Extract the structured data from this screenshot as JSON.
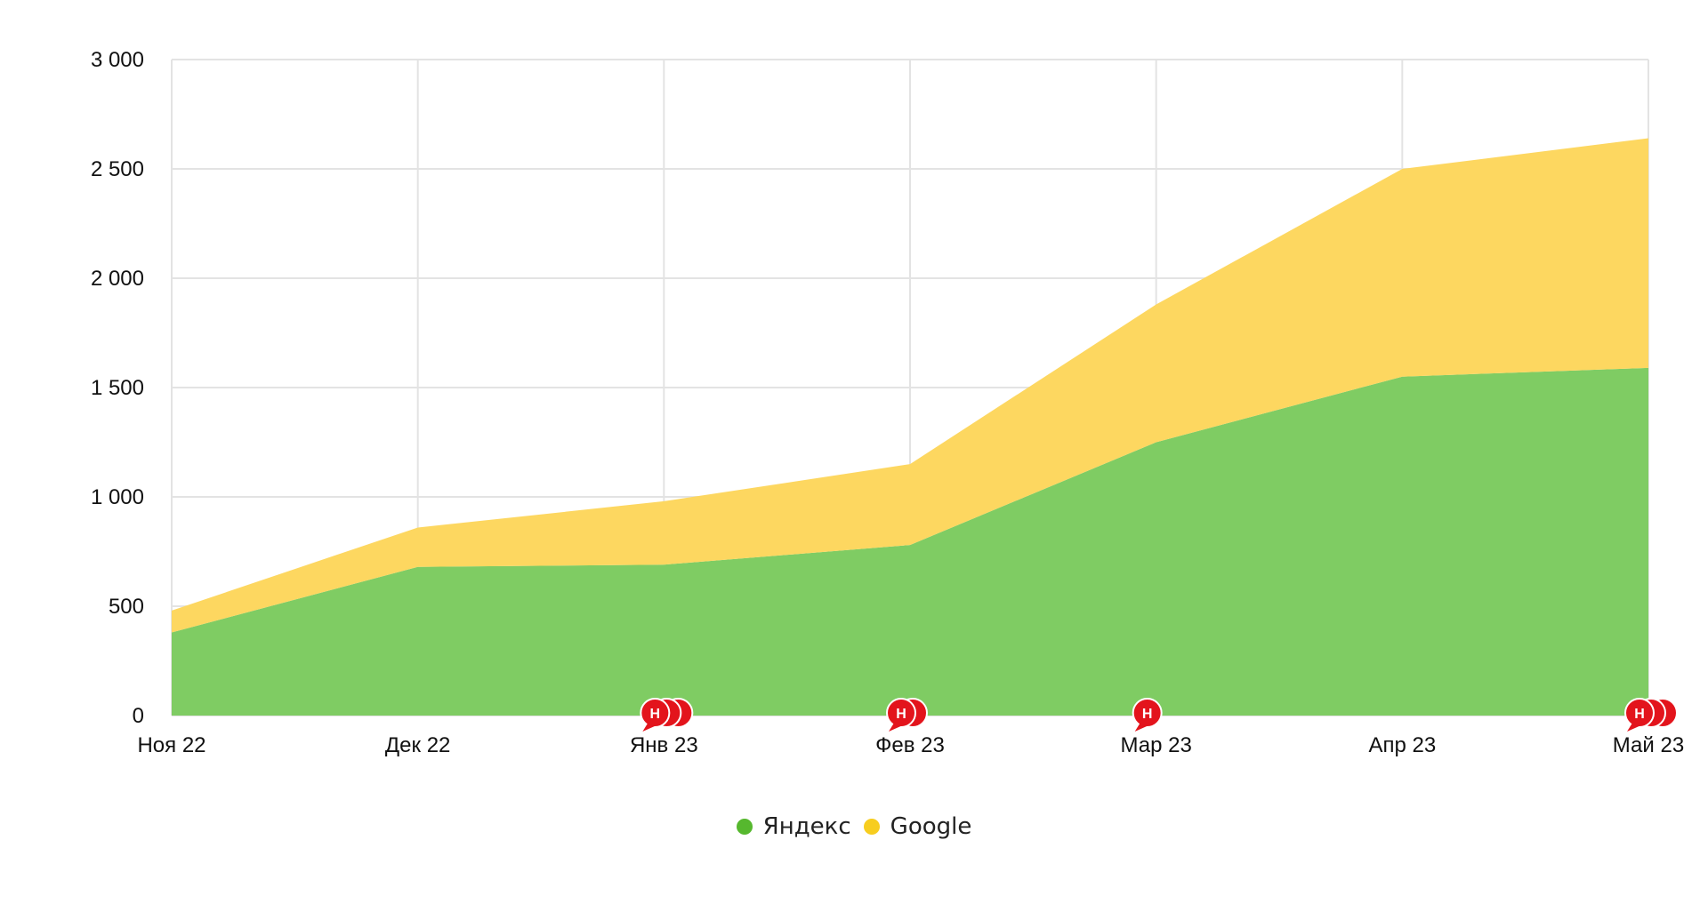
{
  "chart_data": {
    "type": "area",
    "stacked": true,
    "categories": [
      "Ноя 22",
      "Дек 22",
      "Янв 23",
      "Фев 23",
      "Мар 23",
      "Апр 23",
      "Май 23"
    ],
    "series": [
      {
        "name": "Яндекс",
        "color": "#7fcc63",
        "values": [
          380,
          680,
          690,
          780,
          1250,
          1550,
          1590
        ]
      },
      {
        "name": "Google",
        "color": "#fdd760",
        "values": [
          100,
          180,
          290,
          370,
          630,
          950,
          1050
        ]
      }
    ],
    "ylim": [
      0,
      3000
    ],
    "y_ticks": [
      0,
      500,
      1000,
      1500,
      2000,
      2500,
      3000
    ],
    "y_tick_labels": [
      "0",
      "500",
      "1 000",
      "1 500",
      "2 000",
      "2 500",
      "3 000"
    ],
    "grid": true,
    "legend_position": "bottom-center",
    "annotations": [
      {
        "category": "Янв 23",
        "label": "Н",
        "count": 3,
        "color": "#e3141c"
      },
      {
        "category": "Фев 23",
        "label": "Н",
        "count": 2,
        "color": "#e3141c"
      },
      {
        "category": "Мар 23",
        "label": "Н",
        "count": 1,
        "color": "#e3141c"
      },
      {
        "category": "Май 23",
        "label": "Н",
        "count": 3,
        "color": "#e3141c"
      }
    ]
  }
}
